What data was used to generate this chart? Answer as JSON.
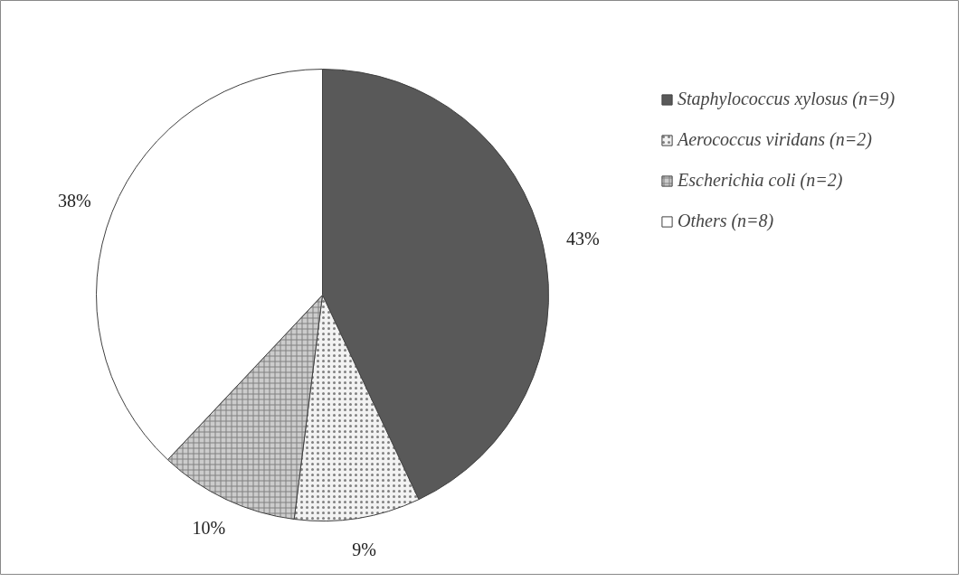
{
  "chart_data": {
    "type": "pie",
    "categories": [
      "Staphylococcus xylosus (n=9)",
      "Aerococcus viridans (n=2)",
      "Escherichia coli (n=2)",
      "Others (n=8)"
    ],
    "values": [
      43,
      9,
      10,
      38
    ],
    "colors": [
      "#595959",
      "#f2f2f2",
      "#cccccc",
      "#ffffff"
    ],
    "value_labels": [
      "43%",
      "9%",
      "10%",
      "38%"
    ],
    "legend": "right"
  }
}
